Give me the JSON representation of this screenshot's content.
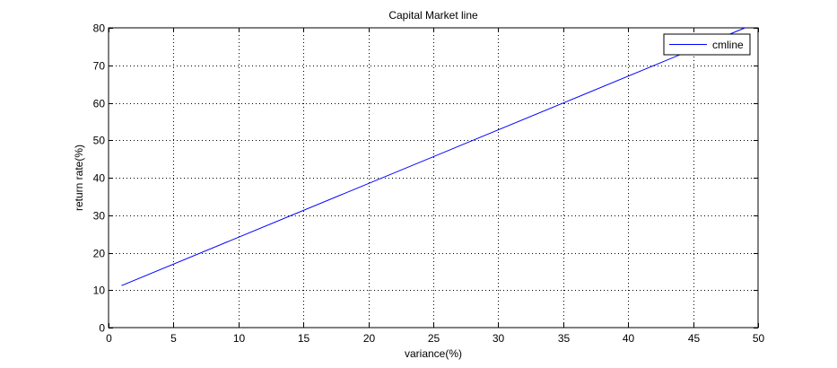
{
  "chart_data": {
    "type": "line",
    "title": "Capital Market line",
    "xlabel": "variance(%)",
    "ylabel": "return rate(%)",
    "xlim": [
      0,
      50
    ],
    "ylim": [
      0,
      80
    ],
    "xticks": [
      0,
      5,
      10,
      15,
      20,
      25,
      30,
      35,
      40,
      45,
      50
    ],
    "yticks": [
      0,
      10,
      20,
      30,
      40,
      50,
      60,
      70,
      80
    ],
    "grid": true,
    "legend_position": "top-right",
    "series": [
      {
        "name": "cmline",
        "color": "#0000ff",
        "x": [
          1,
          49
        ],
        "y": [
          11.2,
          80
        ]
      }
    ]
  }
}
